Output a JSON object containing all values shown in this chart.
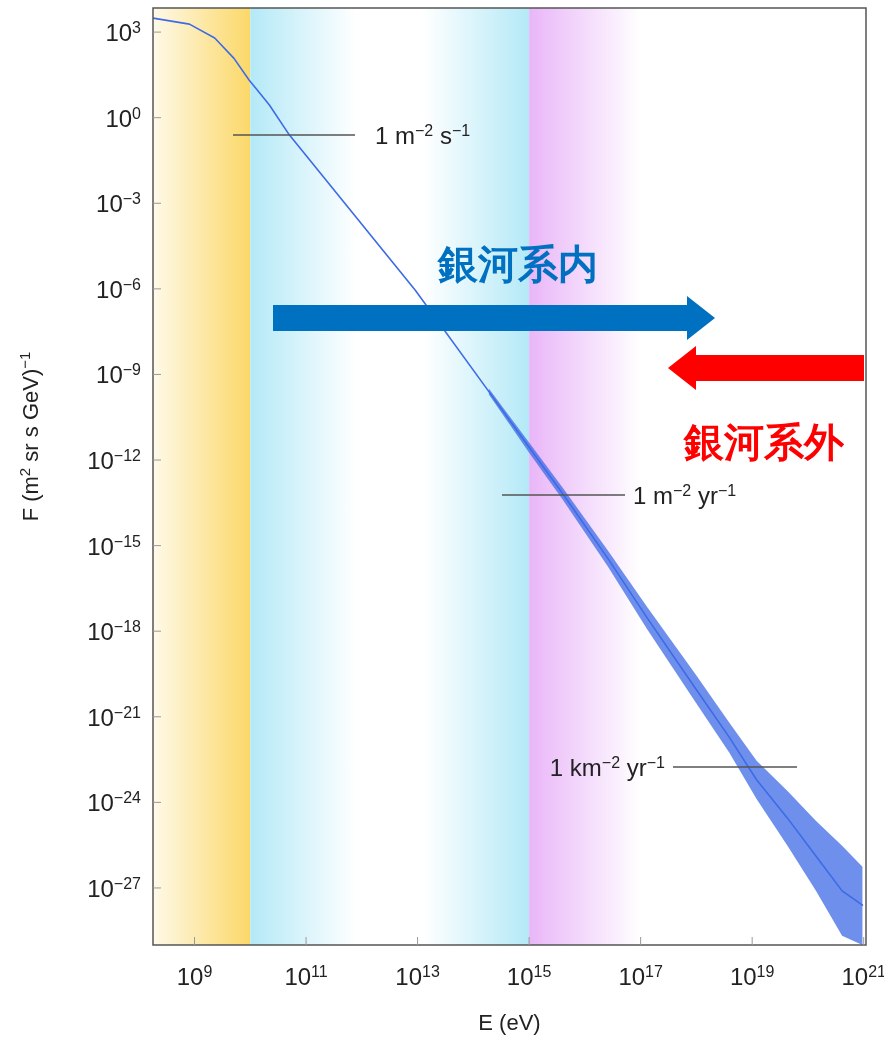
{
  "chart_data": {
    "type": "line",
    "xlabel": "E (eV)",
    "ylabel": "F (m$^{2}$ sr s GeV)$^{−1}$",
    "log": "xy",
    "grid": false,
    "xlim": [
      180000000.0,
      1.1e+21
    ],
    "ylim": [
      1e-29,
      7000
    ],
    "xticks": [
      {
        "value": 1000000000.0,
        "label": "10$^{9}$"
      },
      {
        "value": 100000000000.0,
        "label": "10$^{11}$"
      },
      {
        "value": 10000000000000.0,
        "label": "10$^{13}$"
      },
      {
        "value": 1000000000000000.0,
        "label": "10$^{15}$"
      },
      {
        "value": 1e+17,
        "label": "10$^{17}$"
      },
      {
        "value": 1e+19,
        "label": "10$^{19}$"
      },
      {
        "value": 1e+21,
        "label": "10$^{21}$"
      }
    ],
    "yticks": [
      {
        "value": 1000,
        "label": "10$^{3}$"
      },
      {
        "value": 1,
        "label": "10$^{0}$"
      },
      {
        "value": 0.001,
        "label": "10$^{−3}$"
      },
      {
        "value": 1e-06,
        "label": "10$^{−6}$"
      },
      {
        "value": 1e-09,
        "label": "10$^{−9}$"
      },
      {
        "value": 1e-12,
        "label": "10$^{−12}$"
      },
      {
        "value": 1e-15,
        "label": "10$^{−15}$"
      },
      {
        "value": 1e-18,
        "label": "10$^{−18}$"
      },
      {
        "value": 1e-21,
        "label": "10$^{−21}$"
      },
      {
        "value": 1e-24,
        "label": "10$^{−24}$"
      },
      {
        "value": 1e-27,
        "label": "10$^{−27}$"
      }
    ],
    "series": [
      {
        "color": "#3d6be6",
        "x": [
          180000000.0,
          810000000.0,
          2300000000.0,
          5100000000.0,
          9500000000.0,
          22000000000.0,
          50000000000.0,
          590000000000.0,
          9100000000000.0,
          190000000000000.0,
          1000000000000000.0,
          4100000000000000.0,
          2.6e+16,
          1.3e+17,
          1e+18,
          3.9e+18,
          1.2e+19,
          4.3e+19,
          1.4e+20,
          4.1e+20,
          9.5e+20
        ],
        "values": [
          3100,
          1900,
          620,
          120,
          21,
          2.8,
          0.25,
          0.00066,
          8.9e-07,
          2.5e-10,
          2.8e-12,
          6.2e-14,
          3.5e-16,
          3e-18,
          8.9e-21,
          1.9e-22,
          6.2e-24,
          2.8e-25,
          1.3e-26,
          7.9e-28,
          2.5e-28
        ],
        "lower": [
          null,
          null,
          null,
          null,
          null,
          null,
          null,
          null,
          null,
          2e-10,
          1.8e-12,
          3.8e-14,
          1.8e-16,
          1.2e-18,
          2.9e-21,
          5.5e-23,
          1.3e-24,
          3e-26,
          7.8e-28,
          2.1e-29,
          1e-29
        ],
        "upper": [
          null,
          null,
          null,
          null,
          null,
          null,
          null,
          null,
          null,
          3.2e-10,
          4.1e-12,
          1e-13,
          6.6e-16,
          7.2e-18,
          2.8e-20,
          6.2e-22,
          2.9e-23,
          2.5e-24,
          2.2e-25,
          3e-26,
          5.5e-27
        ]
      }
    ],
    "bands": [
      {
        "axis": "x",
        "from": 180000000.0,
        "to": 10000000000.0,
        "color": "#fbd868"
      },
      {
        "axis": "x",
        "from": 10000000000.0,
        "to": 1000000000000000.0,
        "color": "#b4e9f7"
      },
      {
        "axis": "x",
        "from": 1000000000000000.0,
        "to": 1e+17,
        "color": "#e9b6f8"
      }
    ],
    "annotations": [
      "1 m$^{−2}$ s$^{−1}$",
      "1 m$^{−2}$ yr$^{−1}$",
      "1 km$^{−2}$ yr$^{−1}$",
      "銀河系内",
      "銀河系外"
    ]
  }
}
